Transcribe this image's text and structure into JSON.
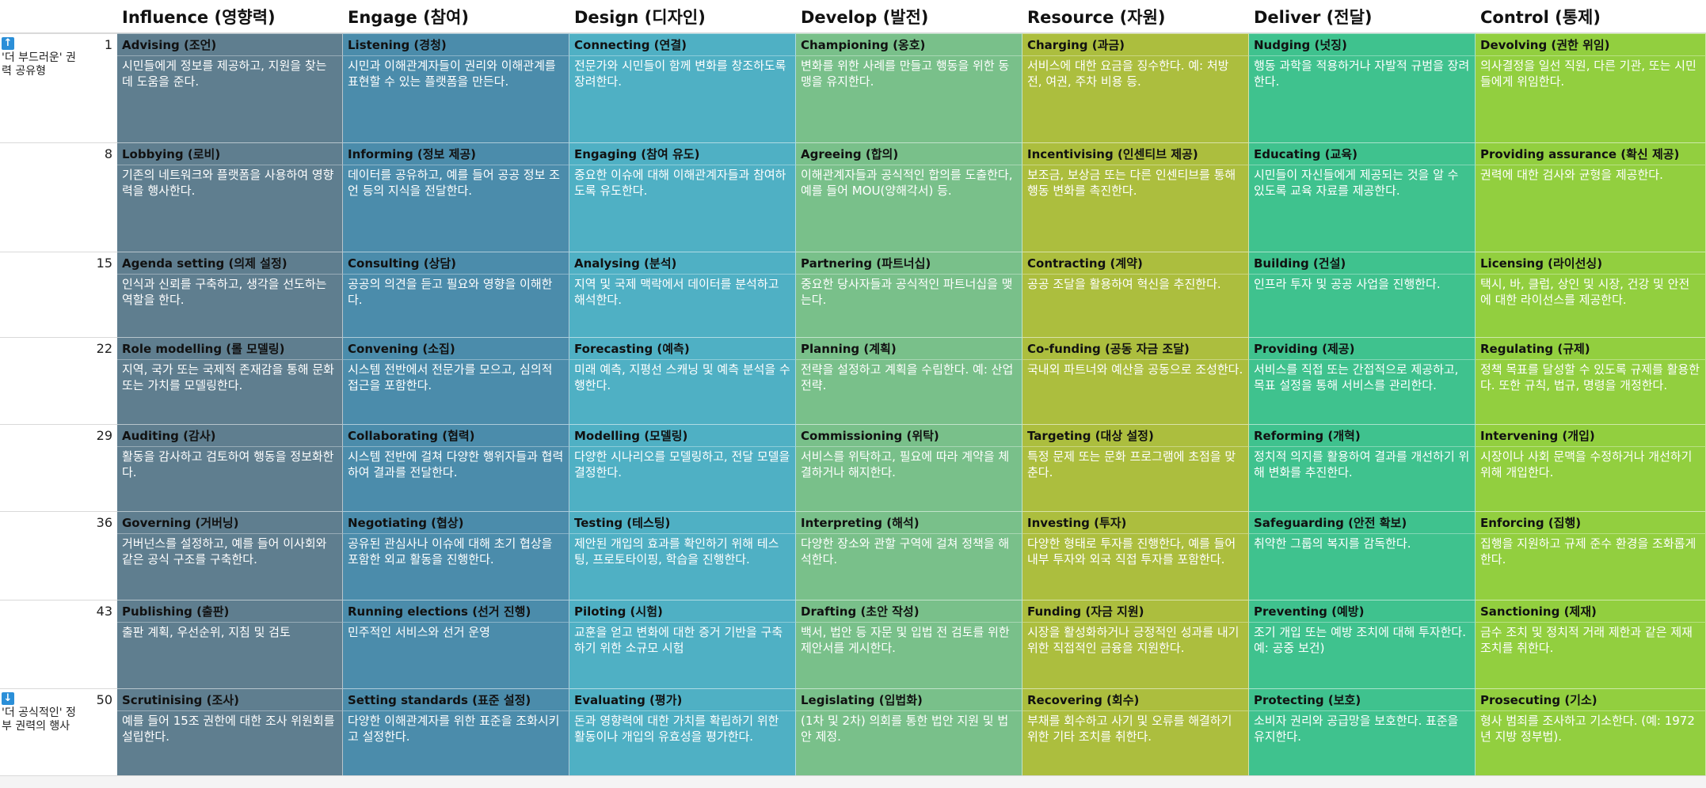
{
  "columns": [
    {
      "title": "Influence (영향력)",
      "color": "#5f7e8f"
    },
    {
      "title": "Engage (참여)",
      "color": "#4b8cab"
    },
    {
      "title": "Design (디자인)",
      "color": "#4fb0c4"
    },
    {
      "title": "Develop (발전)",
      "color": "#79c08a"
    },
    {
      "title": "Resource (자원)",
      "color": "#acbe3e"
    },
    {
      "title": "Deliver (전달)",
      "color": "#3fc28e"
    },
    {
      "title": "Control (통제)",
      "color": "#92cf3f"
    }
  ],
  "side_labels": {
    "top": {
      "icon": "up-arrow-icon",
      "arrow": "↑",
      "text": "'더 부드러운' 권력 공유형"
    },
    "bottom": {
      "icon": "down-arrow-icon",
      "arrow": "↓",
      "text": "'더 공식적인' 정부 권력의 행사"
    }
  },
  "rows": [
    {
      "num": "1",
      "cells": [
        {
          "label": "Advising (조언)",
          "desc": "시민들에게 정보를 제공하고, 지원을 찾는 데 도움을 준다."
        },
        {
          "label": "Listening (경청)",
          "desc": "시민과 이해관계자들이 권리와 이해관계를 표현할 수 있는 플랫폼을 만든다."
        },
        {
          "label": "Connecting (연결)",
          "desc": "전문가와 시민들이 함께 변화를 창조하도록 장려한다."
        },
        {
          "label": "Championing (옹호)",
          "desc": "변화를 위한 사례를 만들고 행동을 위한 동맹을 유지한다."
        },
        {
          "label": "Charging (과금)",
          "desc": "서비스에 대한 요금을 징수한다. 예: 처방전, 여권, 주차 비용 등."
        },
        {
          "label": "Nudging (넛징)",
          "desc": "행동 과학을 적용하거나 자발적 규범을 장려한다."
        },
        {
          "label": "Devolving (권한 위임)",
          "desc": "의사결정을 일선 직원, 다른 기관, 또는 시민들에게 위임한다."
        }
      ]
    },
    {
      "num": "8",
      "cells": [
        {
          "label": "Lobbying (로비)",
          "desc": "기존의 네트워크와 플랫폼을 사용하여 영향력을 행사한다."
        },
        {
          "label": "Informing (정보 제공)",
          "desc": "데이터를 공유하고, 예를 들어 공공 정보 조언 등의 지식을 전달한다."
        },
        {
          "label": "Engaging (참여 유도)",
          "desc": "중요한 이슈에 대해 이해관계자들과 참여하도록 유도한다."
        },
        {
          "label": "Agreeing (합의)",
          "desc": "이해관계자들과 공식적인 합의를 도출한다, 예를 들어 MOU(양해각서) 등."
        },
        {
          "label": "Incentivising (인센티브 제공)",
          "desc": "보조금, 보상금 또는 다른 인센티브를 통해 행동 변화를 촉진한다."
        },
        {
          "label": "Educating (교육)",
          "desc": "시민들이 자신들에게 제공되는 것을 알 수 있도록 교육 자료를 제공한다."
        },
        {
          "label": "Providing assurance (확신 제공)",
          "desc": "권력에 대한 검사와 균형을 제공한다."
        }
      ]
    },
    {
      "num": "15",
      "cells": [
        {
          "label": "Agenda setting (의제 설정)",
          "desc": "인식과 신뢰를 구축하고, 생각을 선도하는 역할을 한다."
        },
        {
          "label": "Consulting (상담)",
          "desc": "공공의 의견을 듣고 필요와 영향을 이해한다."
        },
        {
          "label": "Analysing (분석)",
          "desc": "지역 및 국제 맥락에서 데이터를 분석하고 해석한다."
        },
        {
          "label": "Partnering (파트너십)",
          "desc": "중요한 당사자들과 공식적인 파트너십을 맺는다."
        },
        {
          "label": "Contracting (계약)",
          "desc": "공공 조달을 활용하여 혁신을 추진한다."
        },
        {
          "label": "Building (건설)",
          "desc": "인프라 투자 및 공공 사업을 진행한다."
        },
        {
          "label": "Licensing (라이선싱)",
          "desc": "택시, 바, 클럽, 상인 및 시장, 건강 및 안전에 대한 라이선스를 제공한다."
        }
      ]
    },
    {
      "num": "22",
      "cells": [
        {
          "label": "Role modelling (롤 모델링)",
          "desc": "지역, 국가 또는 국제적 존재감을 통해 문화 또는 가치를 모델링한다."
        },
        {
          "label": "Convening (소집)",
          "desc": "시스템 전반에서 전문가를 모으고, 심의적 접근을 포함한다."
        },
        {
          "label": "Forecasting (예측)",
          "desc": "미래 예측, 지평선 스캐닝 및 예측 분석을 수행한다."
        },
        {
          "label": "Planning (계획)",
          "desc": "전략을 설정하고 계획을 수립한다. 예: 산업 전략."
        },
        {
          "label": "Co-funding (공동 자금 조달)",
          "desc": "국내외 파트너와 예산을 공동으로 조성한다."
        },
        {
          "label": "Providing (제공)",
          "desc": "서비스를 직접 또는 간접적으로 제공하고, 목표 설정을 통해 서비스를 관리한다."
        },
        {
          "label": "Regulating (규제)",
          "desc": "정책 목표를 달성할 수 있도록 규제를 활용한다. 또한 규칙, 법규, 명령을 개정한다."
        }
      ]
    },
    {
      "num": "29",
      "cells": [
        {
          "label": "Auditing (감사)",
          "desc": "활동을 감사하고 검토하여 행동을 정보화한다."
        },
        {
          "label": "Collaborating (협력)",
          "desc": "시스템 전반에 걸쳐 다양한 행위자들과 협력하여 결과를 전달한다."
        },
        {
          "label": "Modelling (모델링)",
          "desc": "다양한 시나리오를 모델링하고, 전달 모델을 결정한다."
        },
        {
          "label": "Commissioning (위탁)",
          "desc": "서비스를 위탁하고, 필요에 따라 계약을 체결하거나 해지한다."
        },
        {
          "label": "Targeting (대상 설정)",
          "desc": "특정 문제 또는 문화 프로그램에 초점을 맞춘다."
        },
        {
          "label": "Reforming (개혁)",
          "desc": "정치적 의지를 활용하여 결과를 개선하기 위해 변화를 추진한다."
        },
        {
          "label": "Intervening (개입)",
          "desc": "시장이나 사회 문맥을 수정하거나 개선하기 위해 개입한다."
        }
      ]
    },
    {
      "num": "36",
      "cells": [
        {
          "label": "Governing (거버닝)",
          "desc": "거버넌스를 설정하고, 예를 들어 이사회와 같은 공식 구조를 구축한다."
        },
        {
          "label": "Negotiating (협상)",
          "desc": "공유된 관심사나 이슈에 대해 초기 협상을 포함한 외교 활동을 진행한다."
        },
        {
          "label": "Testing (테스팅)",
          "desc": "제안된 개입의 효과를 확인하기 위해 테스팅, 프로토타이핑, 학습을 진행한다."
        },
        {
          "label": "Interpreting (해석)",
          "desc": "다양한 장소와 관할 구역에 걸쳐 정책을 해석한다."
        },
        {
          "label": "Investing (투자)",
          "desc": "다양한 형태로 투자를 진행한다, 예를 들어 내부 투자와 외국 직접 투자를 포함한다."
        },
        {
          "label": "Safeguarding (안전 확보)",
          "desc": "취약한 그룹의 복지를 감독한다."
        },
        {
          "label": "Enforcing (집행)",
          "desc": "집행을 지원하고 규제 준수 환경을 조화롭게 한다."
        }
      ]
    },
    {
      "num": "43",
      "cells": [
        {
          "label": "Publishing (출판)",
          "desc": "출판 계획, 우선순위, 지침 및 검토"
        },
        {
          "label": "Running elections (선거 진행)",
          "desc": "민주적인 서비스와 선거 운영"
        },
        {
          "label": "Piloting (시험)",
          "desc": "교훈을 얻고 변화에 대한 증거 기반을 구축하기 위한 소규모 시험"
        },
        {
          "label": "Drafting (초안 작성)",
          "desc": "백서, 법안 등 자문 및 입법 전 검토를 위한 제안서를 게시한다."
        },
        {
          "label": "Funding (자금 지원)",
          "desc": "시장을 활성화하거나 긍정적인 성과를 내기 위한 직접적인 금융을 지원한다."
        },
        {
          "label": "Preventing (예방)",
          "desc": "조기 개입 또는 예방 조치에 대해 투자한다. 예: 공중 보건)"
        },
        {
          "label": "Sanctioning (제재)",
          "desc": "금수 조치 및 정치적 거래 제한과 같은 제재 조치를 취한다."
        }
      ]
    },
    {
      "num": "50",
      "cells": [
        {
          "label": "Scrutinising (조사)",
          "desc": "예를 들어 15조 권한에 대한 조사 위원회를 설립한다."
        },
        {
          "label": "Setting standards (표준 설정)",
          "desc": "다양한 이해관계자를 위한 표준을 조화시키고 설정한다."
        },
        {
          "label": "Evaluating (평가)",
          "desc": "돈과 영향력에 대한 가치를 확립하기 위한 활동이나 개입의 유효성을 평가한다."
        },
        {
          "label": "Legislating (입법화)",
          "desc": "(1차 및 2차) 의회를 통한 법안 지원 및 법안 제정."
        },
        {
          "label": "Recovering (회수)",
          "desc": "부채를 회수하고 사기 및 오류를 해결하기 위한 기타 조치를 취한다."
        },
        {
          "label": "Protecting (보호)",
          "desc": "소비자 권리와 공급망을 보호한다. 표준을 유지한다."
        },
        {
          "label": "Prosecuting (기소)",
          "desc": "형사 범죄를 조사하고 기소한다. (예: 1972년 지방 정부법)."
        }
      ]
    }
  ]
}
